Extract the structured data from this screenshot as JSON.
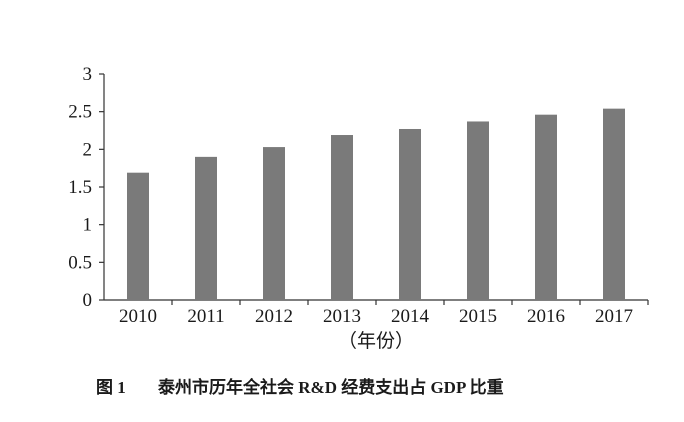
{
  "chart_data": {
    "type": "bar",
    "title": "",
    "categories": [
      "2010",
      "2011",
      "2012",
      "2013",
      "2014",
      "2015",
      "2016",
      "2017"
    ],
    "values": [
      1.69,
      1.9,
      2.03,
      2.19,
      2.27,
      2.37,
      2.46,
      2.54
    ],
    "xlabel": "（年份）",
    "ylabel": "",
    "ylim": [
      0,
      3
    ],
    "yticks": [
      "0",
      "0.5",
      "1",
      "1.5",
      "2",
      "2.5",
      "3"
    ],
    "grid": false,
    "legend": "none",
    "bar_color": "#7a7a7a",
    "axis_color": "#333333"
  },
  "caption": {
    "label": "图 1",
    "text": "泰州市历年全社会 R&D 经费支出占 GDP 比重"
  }
}
